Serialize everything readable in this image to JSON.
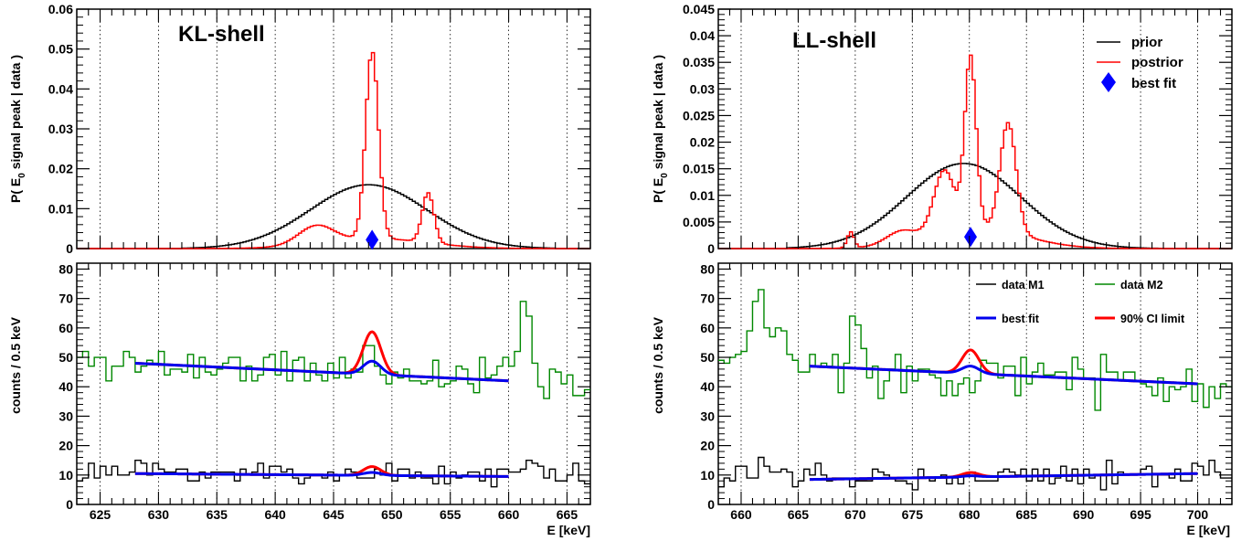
{
  "colors": {
    "prior": "#000000",
    "posterior": "#ff0000",
    "best_fit_marker": "#0000ff",
    "data_m1": "#000000",
    "data_m2": "#008800",
    "best_fit_line": "#0000ee",
    "ci_limit": "#ff0000",
    "grid": "#000000"
  },
  "chart_data": [
    {
      "id": "kl-top",
      "type": "line",
      "title": "KL-shell",
      "xlabel": "",
      "ylabel": "P( E_0 signal peak | data )",
      "ylabel_main": "P( E",
      "ylabel_sub": "0",
      "ylabel_rest": " signal peak | data )",
      "xlim": [
        623,
        667
      ],
      "ylim": [
        0,
        0.06
      ],
      "xticks": [
        625,
        630,
        635,
        640,
        645,
        650,
        655,
        660,
        665
      ],
      "yticks": [
        0,
        0.01,
        0.02,
        0.03,
        0.04,
        0.05,
        0.06
      ],
      "ytick_labels": [
        "0",
        "0.01",
        "0.02",
        "0.03",
        "0.04",
        "0.05",
        "0.06"
      ],
      "grid_x": true,
      "series": [
        {
          "name": "prior",
          "kind": "gaussian",
          "mean": 648,
          "sigma": 5,
          "amplitude": 0.016,
          "x_range": [
            632,
            664
          ]
        },
        {
          "name": "postrior",
          "kind": "sum_gauss",
          "x_range": [
            632,
            664
          ],
          "components": [
            {
              "mean": 648.3,
              "sigma": 0.55,
              "amplitude": 0.047
            },
            {
              "mean": 653.1,
              "sigma": 0.5,
              "amplitude": 0.0125
            },
            {
              "mean": 643.5,
              "sigma": 1.5,
              "amplitude": 0.0045
            },
            {
              "mean": 648.5,
              "sigma": 4.5,
              "amplitude": 0.0025
            }
          ]
        },
        {
          "name": "best fit",
          "kind": "marker",
          "x": 648.3,
          "y": 0.0022
        }
      ],
      "legend": null
    },
    {
      "id": "kl-bottom",
      "type": "line",
      "xlabel": "E [keV]",
      "ylabel": "counts / 0.5 keV",
      "xlim": [
        623,
        667
      ],
      "ylim": [
        0,
        82
      ],
      "xticks": [
        625,
        630,
        635,
        640,
        645,
        650,
        655,
        660,
        665
      ],
      "yticks": [
        0,
        10,
        20,
        30,
        40,
        50,
        60,
        70,
        80
      ],
      "ytick_labels": [
        "0",
        "10",
        "20",
        "30",
        "40",
        "50",
        "60",
        "70",
        "80"
      ],
      "grid_x": true,
      "series": [
        {
          "name": "data M2",
          "kind": "hist",
          "bin": 0.5,
          "x_range": [
            623,
            667
          ],
          "base": {
            "type": "linear",
            "x0": 628,
            "y0": 48,
            "x1": 660,
            "y1": 43
          },
          "noise": 4.5,
          "seed": 11,
          "features": [
            {
              "mean": 661.3,
              "sigma": 0.6,
              "amplitude": 26
            },
            {
              "mean": 648.3,
              "sigma": 0.8,
              "amplitude": 6
            }
          ]
        },
        {
          "name": "data M1",
          "kind": "hist",
          "bin": 0.5,
          "x_range": [
            623,
            667
          ],
          "base": {
            "type": "linear",
            "x0": 628,
            "y0": 11,
            "x1": 660,
            "y1": 10
          },
          "noise": 2.5,
          "seed": 23,
          "features": [
            {
              "mean": 661.2,
              "sigma": 0.7,
              "amplitude": 5
            }
          ]
        },
        {
          "name": "90% CI limit (M2)",
          "kind": "line",
          "x_range": [
            628,
            660
          ],
          "base": {
            "x0": 628,
            "y0": 48,
            "x1": 660,
            "y1": 42
          },
          "peak": {
            "mean": 648.3,
            "sigma": 0.75,
            "amplitude": 14.5
          },
          "width": 3
        },
        {
          "name": "best fit (M2)",
          "kind": "line",
          "x_range": [
            628,
            660
          ],
          "base": {
            "x0": 628,
            "y0": 48,
            "x1": 660,
            "y1": 42
          },
          "peak": {
            "mean": 648.3,
            "sigma": 0.75,
            "amplitude": 4.5
          },
          "width": 3
        },
        {
          "name": "90% CI limit (M1)",
          "kind": "line",
          "x_range": [
            628,
            660
          ],
          "base": {
            "x0": 628,
            "y0": 10.5,
            "x1": 660,
            "y1": 9.5
          },
          "peak": {
            "mean": 648.3,
            "sigma": 0.75,
            "amplitude": 3
          },
          "width": 3
        },
        {
          "name": "best fit (M1)",
          "kind": "line",
          "x_range": [
            628,
            660
          ],
          "base": {
            "x0": 628,
            "y0": 10.5,
            "x1": 660,
            "y1": 9.5
          },
          "peak": {
            "mean": 648.3,
            "sigma": 0.75,
            "amplitude": 1
          },
          "width": 3
        }
      ],
      "legend": null
    },
    {
      "id": "ll-top",
      "type": "line",
      "title": "LL-shell",
      "xlabel": "",
      "ylabel": "P( E_0 signal peak | data )",
      "ylabel_main": "P( E",
      "ylabel_sub": "0",
      "ylabel_rest": " signal peak | data )",
      "xlim": [
        658,
        703
      ],
      "ylim": [
        0,
        0.045
      ],
      "xticks": [
        660,
        665,
        670,
        675,
        680,
        685,
        690,
        695,
        700
      ],
      "yticks": [
        0,
        0.005,
        0.01,
        0.015,
        0.02,
        0.025,
        0.03,
        0.035,
        0.04,
        0.045
      ],
      "ytick_labels": [
        "0",
        "0.005",
        "0.01",
        "0.015",
        "0.02",
        "0.025",
        "0.03",
        "0.035",
        "0.04",
        "0.045"
      ],
      "grid_x": true,
      "series": [
        {
          "name": "prior",
          "kind": "gaussian",
          "mean": 679.5,
          "sigma": 5,
          "amplitude": 0.016,
          "x_range": [
            664,
            697
          ]
        },
        {
          "name": "postrior",
          "kind": "sum_gauss",
          "x_range": [
            664,
            697
          ],
          "components": [
            {
              "mean": 680.1,
              "sigma": 0.5,
              "amplitude": 0.032
            },
            {
              "mean": 683.4,
              "sigma": 0.7,
              "amplitude": 0.0205
            },
            {
              "mean": 677.8,
              "sigma": 0.9,
              "amplitude": 0.0115
            },
            {
              "mean": 669.6,
              "sigma": 0.3,
              "amplitude": 0.003
            },
            {
              "mean": 674,
              "sigma": 1.3,
              "amplitude": 0.0022
            },
            {
              "mean": 680.5,
              "sigma": 4.2,
              "amplitude": 0.004
            }
          ]
        },
        {
          "name": "best fit",
          "kind": "marker",
          "x": 680.1,
          "y": 0.0022
        }
      ],
      "legend": {
        "placement": "top-right",
        "entries": [
          {
            "label": "prior",
            "kind": "line",
            "series": "prior"
          },
          {
            "label": "postrior",
            "kind": "line",
            "series": "postrior"
          },
          {
            "label": "best fit",
            "kind": "marker",
            "series": "best fit"
          }
        ]
      }
    },
    {
      "id": "ll-bottom",
      "type": "line",
      "xlabel": "E [keV]",
      "ylabel": "counts / 0.5 keV",
      "xlim": [
        658,
        703
      ],
      "ylim": [
        0,
        82
      ],
      "xticks": [
        660,
        665,
        670,
        675,
        680,
        685,
        690,
        695,
        700
      ],
      "yticks": [
        0,
        10,
        20,
        30,
        40,
        50,
        60,
        70,
        80
      ],
      "ytick_labels": [
        "0",
        "10",
        "20",
        "30",
        "40",
        "50",
        "60",
        "70",
        "80"
      ],
      "grid_x": true,
      "series": [
        {
          "name": "data M2",
          "kind": "hist",
          "bin": 0.5,
          "x_range": [
            658,
            703
          ],
          "base": {
            "type": "linear",
            "x0": 666,
            "y0": 47,
            "x1": 700,
            "y1": 41
          },
          "noise": 5,
          "seed": 37,
          "features": [
            {
              "mean": 661.6,
              "sigma": 0.5,
              "amplitude": 28
            },
            {
              "mean": 663.5,
              "sigma": 0.6,
              "amplitude": 12
            },
            {
              "mean": 670.2,
              "sigma": 0.4,
              "amplitude": 18
            }
          ]
        },
        {
          "name": "data M1",
          "kind": "hist",
          "bin": 0.5,
          "x_range": [
            658,
            703
          ],
          "base": {
            "type": "linear",
            "x0": 666,
            "y0": 9,
            "x1": 700,
            "y1": 11
          },
          "noise": 2.5,
          "seed": 53,
          "features": [
            {
              "mean": 662.5,
              "sigma": 0.8,
              "amplitude": 5
            }
          ]
        },
        {
          "name": "90% CI limit (M2)",
          "kind": "line",
          "x_range": [
            666,
            700
          ],
          "base": {
            "x0": 666,
            "y0": 47,
            "x1": 700,
            "y1": 41
          },
          "peak": {
            "mean": 680.1,
            "sigma": 0.75,
            "amplitude": 8
          },
          "width": 3
        },
        {
          "name": "best fit (M2)",
          "kind": "line",
          "x_range": [
            666,
            700
          ],
          "base": {
            "x0": 666,
            "y0": 47,
            "x1": 700,
            "y1": 41
          },
          "peak": {
            "mean": 680.1,
            "sigma": 0.75,
            "amplitude": 2.5
          },
          "width": 3
        },
        {
          "name": "90% CI limit (M1)",
          "kind": "line",
          "x_range": [
            666,
            700
          ],
          "base": {
            "x0": 666,
            "y0": 8.5,
            "x1": 700,
            "y1": 10.5
          },
          "peak": {
            "mean": 680.1,
            "sigma": 0.75,
            "amplitude": 1.5
          },
          "width": 3
        },
        {
          "name": "best fit (M1)",
          "kind": "line",
          "x_range": [
            666,
            700
          ],
          "base": {
            "x0": 666,
            "y0": 8.5,
            "x1": 700,
            "y1": 10.5
          },
          "peak": {
            "mean": 680.1,
            "sigma": 0.75,
            "amplitude": 0.4
          },
          "width": 3
        }
      ],
      "legend": {
        "placement": "top-right",
        "columns": 2,
        "entries": [
          {
            "label": "data M1",
            "kind": "line",
            "color_key": "data_m1"
          },
          {
            "label": "data M2",
            "kind": "line",
            "color_key": "data_m2"
          },
          {
            "label": "best fit",
            "kind": "thick",
            "color_key": "best_fit_line"
          },
          {
            "label": "90% CI limit",
            "kind": "thick",
            "color_key": "ci_limit"
          }
        ]
      }
    }
  ]
}
